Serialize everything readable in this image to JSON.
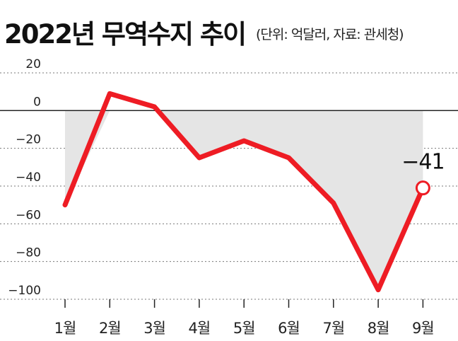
{
  "chart_data": {
    "type": "line",
    "title": "2022년 무역수지 추이",
    "unit_note": "(단위: 억달러, 자료: 관세청)",
    "categories": [
      "1월",
      "2월",
      "3월",
      "4월",
      "5월",
      "6월",
      "7월",
      "8월",
      "9월"
    ],
    "series": [
      {
        "values": [
          -50,
          9,
          2,
          -25,
          -16,
          -25,
          -49,
          -95,
          -41
        ]
      }
    ],
    "ylim": [
      -100,
      20
    ],
    "yticks": [
      20,
      0,
      -20,
      -40,
      -60,
      -80,
      -100
    ],
    "ytick_labels": [
      "20",
      "0",
      "−20",
      "−40",
      "−60",
      "−80",
      "−100"
    ],
    "data_label": {
      "index": 8,
      "text": "−41"
    },
    "grid": "dotted horizontal",
    "fill": "area between line and zero",
    "colors": {
      "line": "#ee1c24",
      "fill": "#e5e5e5",
      "grid": "#777777"
    }
  }
}
